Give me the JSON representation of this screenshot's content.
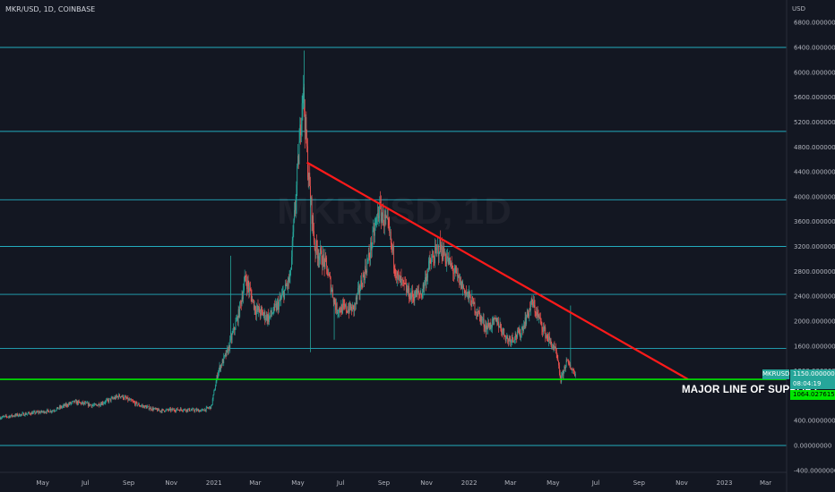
{
  "header": {
    "title": "MKR/USD, 1D, COINBASE"
  },
  "currency": "USD",
  "watermark": "MKRUSD, 1D",
  "support_label": "MAJOR LINE OF SUPPORT",
  "badges": {
    "symbol": "MKRUSD",
    "price": "1150.00000000",
    "countdown": "08:04:19",
    "support_price": "1064.02761515"
  },
  "colors": {
    "background": "#131722",
    "up": "#26a69a",
    "down": "#ef5350",
    "level_lines": "#26c6da",
    "support_line": "#00e600",
    "trend_line": "#ff1a1a"
  },
  "chart_data": {
    "type": "candlestick",
    "title": "MKR/USD, 1D, COINBASE",
    "y_unit": "USD",
    "ylim": [
      -400,
      7000
    ],
    "y_ticks": [
      "6800.00000000",
      "6400.00000000",
      "6000.00000000",
      "5600.00000000",
      "5200.00000000",
      "4800.00000000",
      "4400.00000000",
      "4000.00000000",
      "3600.00000000",
      "3200.00000000",
      "2800.00000000",
      "2400.00000000",
      "2000.00000000",
      "1600.00000000",
      "1200.00000000",
      "800.00000000",
      "400.00000000",
      "0.00000000",
      "-400.00000000"
    ],
    "y_tick_values": [
      6800,
      6400,
      6000,
      5600,
      5200,
      4800,
      4400,
      4000,
      3600,
      3200,
      2800,
      2400,
      2000,
      1600,
      1200,
      800,
      400,
      0,
      -400
    ],
    "x_ticks": [
      {
        "label": "May",
        "x": "2020-05-01"
      },
      {
        "label": "Jul",
        "x": "2020-07-01"
      },
      {
        "label": "Sep",
        "x": "2020-09-01"
      },
      {
        "label": "Nov",
        "x": "2020-11-01"
      },
      {
        "label": "2021",
        "x": "2021-01-01"
      },
      {
        "label": "Mar",
        "x": "2021-03-01"
      },
      {
        "label": "May",
        "x": "2021-05-01"
      },
      {
        "label": "Jul",
        "x": "2021-07-01"
      },
      {
        "label": "Sep",
        "x": "2021-09-01"
      },
      {
        "label": "Nov",
        "x": "2021-11-01"
      },
      {
        "label": "2022",
        "x": "2022-01-01"
      },
      {
        "label": "Mar",
        "x": "2022-03-01"
      },
      {
        "label": "May",
        "x": "2022-05-01"
      },
      {
        "label": "Jul",
        "x": "2022-07-01"
      },
      {
        "label": "Sep",
        "x": "2022-09-01"
      },
      {
        "label": "Nov",
        "x": "2022-11-01"
      },
      {
        "label": "2023",
        "x": "2023-01-01"
      },
      {
        "label": "Mar",
        "x": "2023-03-01"
      }
    ],
    "x_range": [
      "2020-03-01",
      "2023-03-31"
    ],
    "horizontal_levels": [
      6400,
      5050,
      3950,
      3200,
      2430,
      1560,
      0
    ],
    "support_level": 1064,
    "trend_line": {
      "start": {
        "x": "2021-05-14",
        "y": 4550
      },
      "end": {
        "x": "2022-11-10",
        "y": 1064
      }
    },
    "price_path": [
      {
        "x": "2020-03-01",
        "y": 450
      },
      {
        "x": "2020-04-15",
        "y": 520
      },
      {
        "x": "2020-05-15",
        "y": 560
      },
      {
        "x": "2020-06-15",
        "y": 700
      },
      {
        "x": "2020-07-15",
        "y": 640
      },
      {
        "x": "2020-08-20",
        "y": 800
      },
      {
        "x": "2020-09-15",
        "y": 650
      },
      {
        "x": "2020-10-15",
        "y": 560
      },
      {
        "x": "2020-11-15",
        "y": 580
      },
      {
        "x": "2020-12-15",
        "y": 560
      },
      {
        "x": "2020-12-28",
        "y": 620
      },
      {
        "x": "2021-01-07",
        "y": 1200
      },
      {
        "x": "2021-01-20",
        "y": 1500
      },
      {
        "x": "2021-02-05",
        "y": 2100
      },
      {
        "x": "2021-02-15",
        "y": 2700
      },
      {
        "x": "2021-03-01",
        "y": 2200
      },
      {
        "x": "2021-03-20",
        "y": 2050
      },
      {
        "x": "2021-04-05",
        "y": 2300
      },
      {
        "x": "2021-04-20",
        "y": 2700
      },
      {
        "x": "2021-05-03",
        "y": 4800
      },
      {
        "x": "2021-05-08",
        "y": 5800
      },
      {
        "x": "2021-05-15",
        "y": 4500
      },
      {
        "x": "2021-05-25",
        "y": 3200
      },
      {
        "x": "2021-06-10",
        "y": 2900
      },
      {
        "x": "2021-06-25",
        "y": 2200
      },
      {
        "x": "2021-07-20",
        "y": 2200
      },
      {
        "x": "2021-08-10",
        "y": 3000
      },
      {
        "x": "2021-08-25",
        "y": 3800
      },
      {
        "x": "2021-09-07",
        "y": 3500
      },
      {
        "x": "2021-09-20",
        "y": 2700
      },
      {
        "x": "2021-10-10",
        "y": 2400
      },
      {
        "x": "2021-10-25",
        "y": 2450
      },
      {
        "x": "2021-11-05",
        "y": 2900
      },
      {
        "x": "2021-11-20",
        "y": 3200
      },
      {
        "x": "2021-12-05",
        "y": 2900
      },
      {
        "x": "2021-12-20",
        "y": 2600
      },
      {
        "x": "2022-01-05",
        "y": 2300
      },
      {
        "x": "2022-01-25",
        "y": 1900
      },
      {
        "x": "2022-02-10",
        "y": 2000
      },
      {
        "x": "2022-02-25",
        "y": 1700
      },
      {
        "x": "2022-03-15",
        "y": 1800
      },
      {
        "x": "2022-04-01",
        "y": 2300
      },
      {
        "x": "2022-04-20",
        "y": 1800
      },
      {
        "x": "2022-05-05",
        "y": 1500
      },
      {
        "x": "2022-05-12",
        "y": 1050
      },
      {
        "x": "2022-05-20",
        "y": 1350
      },
      {
        "x": "2022-06-02",
        "y": 1150
      }
    ]
  }
}
